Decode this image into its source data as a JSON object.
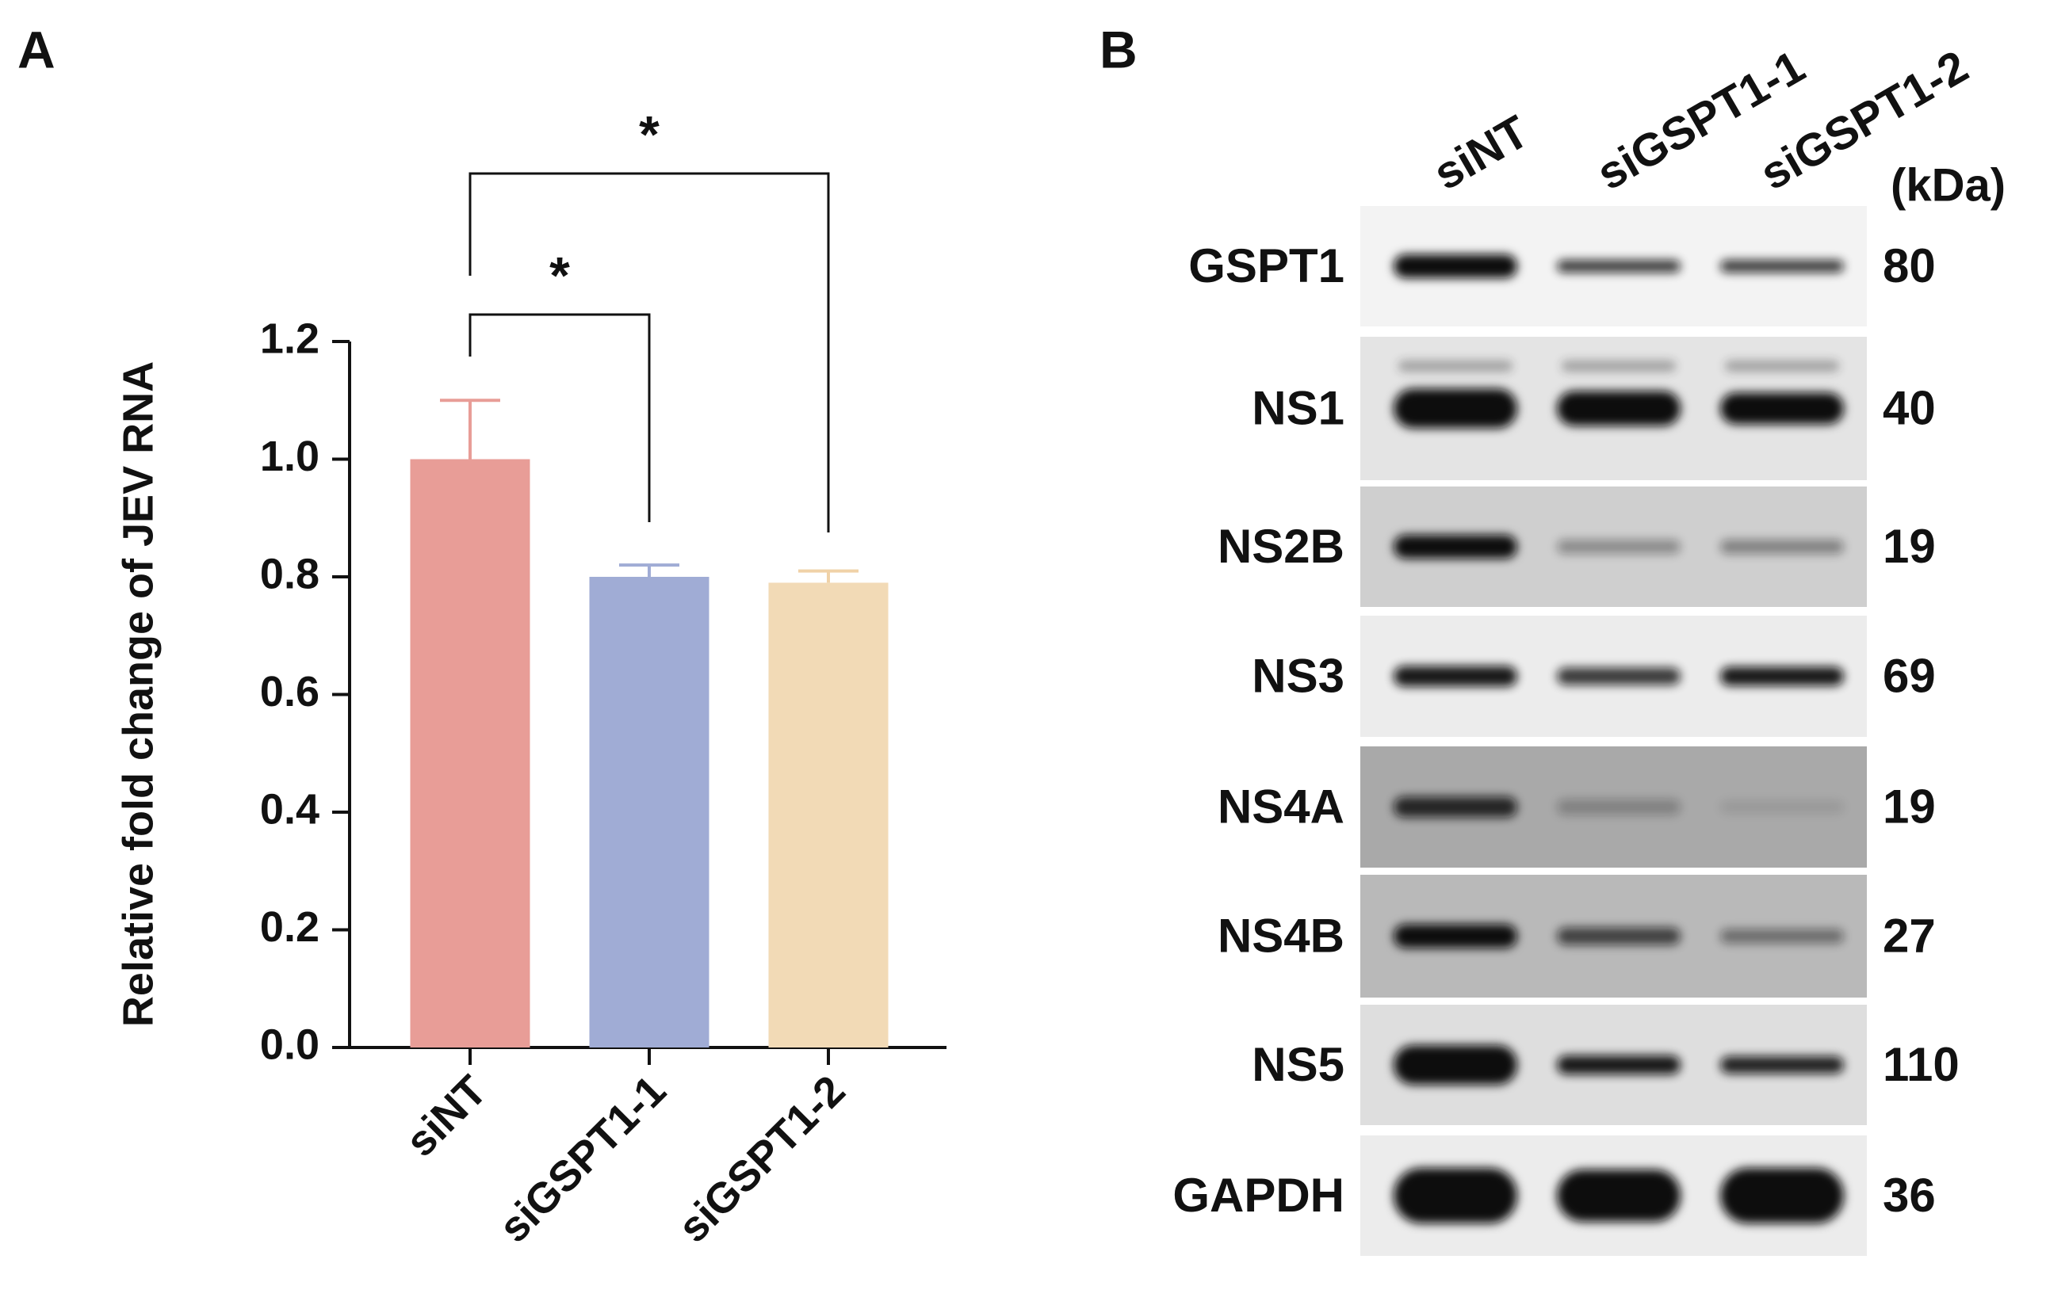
{
  "chart_data": {
    "type": "bar",
    "panel_label": "A",
    "y_label": "Relative fold change of JEV RNA",
    "categories": [
      "siNT",
      "siGSPT1-1",
      "siGSPT1-2"
    ],
    "values": [
      1.0,
      0.8,
      0.79
    ],
    "errors": [
      0.1,
      0.02,
      0.02
    ],
    "colors": [
      "#e89d97",
      "#a0acd5",
      "#f2dab6"
    ],
    "error_colors": [
      "#e89d97",
      "#a0acd5",
      "#f0d2a8"
    ],
    "ylim": [
      0,
      1.2
    ],
    "yticks": [
      {
        "value": 0,
        "label": "0.0"
      },
      0.2,
      0.4,
      0.6,
      0.8,
      {
        "value": 1,
        "label": "1.0"
      },
      1.2
    ],
    "significance": [
      {
        "groups": [
          "siNT",
          "siGSPT1-1"
        ],
        "label": "*"
      },
      {
        "groups": [
          "siNT",
          "siGSPT1-2"
        ],
        "label": "*"
      }
    ]
  },
  "blot": {
    "panel_label": "B",
    "lanes": [
      "siNT",
      "siGSPT1-1",
      "siGSPT1-2"
    ],
    "unit": "(kDa)",
    "rows": [
      {
        "protein": "GSPT1",
        "kda": 80
      },
      {
        "protein": "NS1",
        "kda": 40
      },
      {
        "protein": "NS2B",
        "kda": 19
      },
      {
        "protein": "NS3",
        "kda": 69
      },
      {
        "protein": "NS4A",
        "kda": 19
      },
      {
        "protein": "NS4B",
        "kda": 27
      },
      {
        "protein": "NS5",
        "kda": 110
      },
      {
        "protein": "GAPDH",
        "kda": 36
      }
    ]
  }
}
